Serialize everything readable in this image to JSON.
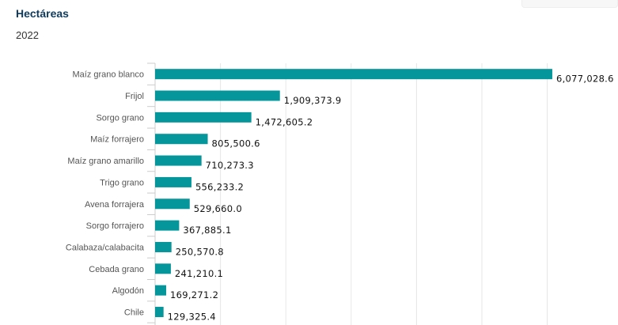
{
  "header": {
    "title": "Hectáreas",
    "subtitle": "2022"
  },
  "chart_data": {
    "type": "bar",
    "orientation": "horizontal",
    "categories": [
      "Maíz grano blanco",
      "Frijol",
      "Sorgo grano",
      "Maíz forrajero",
      "Maíz grano amarillo",
      "Trigo grano",
      "Avena forrajera",
      "Sorgo forrajero",
      "Calabaza/calabacita",
      "Cebada grano",
      "Algodón",
      "Chile"
    ],
    "values": [
      6077028.6,
      1909373.9,
      1472605.2,
      805500.6,
      710273.3,
      556233.2,
      529660.0,
      367885.1,
      250570.8,
      241210.1,
      169271.2,
      129325.4
    ],
    "labels": [
      "6,077,028.6",
      "1,909,373.9",
      "1,472,605.2",
      "805,500.6",
      "710,273.3",
      "556,233.2",
      "529,660.0",
      "367,885.1",
      "250,570.8",
      "241,210.1",
      "169,271.2",
      "129,325.4"
    ],
    "xlim": [
      0,
      7000000
    ],
    "grid": true,
    "grid_step": 1000000,
    "color": "#05969b"
  }
}
